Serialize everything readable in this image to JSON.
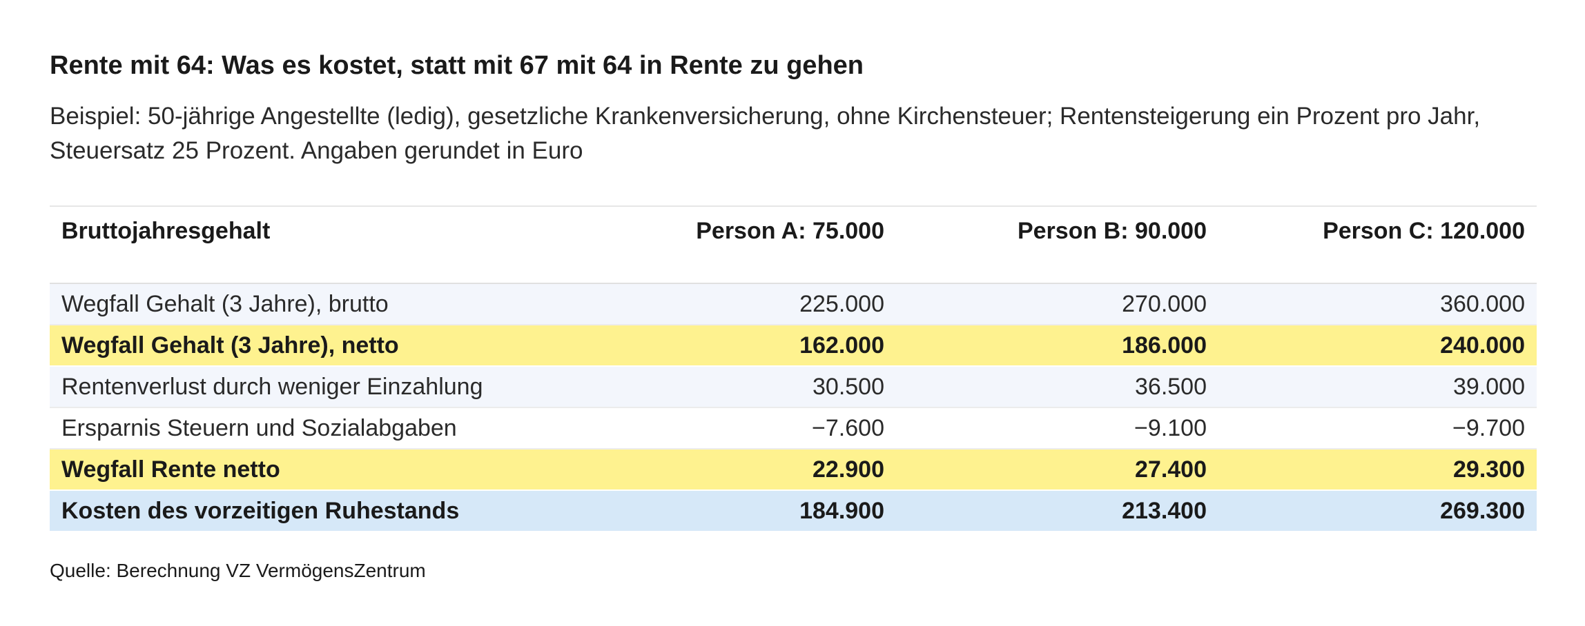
{
  "title": "Rente mit 64: Was es kostet, statt mit 67 mit 64 in Rente zu gehen",
  "subtitle": "Beispiel: 50-jährige Angestellte (ledig), gesetzliche Krankenversicherung, ohne Kirchensteuer; Rentensteigerung ein Prozent pro Jahr, Steuersatz 25 Prozent. Angaben gerundet in Euro",
  "source": "Quelle: Berechnung VZ VermögensZentrum",
  "colors": {
    "row_plain_alt": "#f3f6fc",
    "row_highlight_yellow": "#fef28f",
    "row_highlight_blue": "#d6e8f8"
  },
  "chart_data": {
    "type": "table",
    "columns": [
      "Bruttojahresgehalt",
      "Person A: 75.000",
      "Person B: 90.000",
      "Person C: 120.000"
    ],
    "rows": [
      {
        "label": "Wegfall Gehalt (3 Jahre), brutto",
        "values": [
          "225.000",
          "270.000",
          "360.000"
        ],
        "style": "plain-a"
      },
      {
        "label": "Wegfall Gehalt (3 Jahre), netto",
        "values": [
          "162.000",
          "186.000",
          "240.000"
        ],
        "style": "yellow"
      },
      {
        "label": "Rentenverlust durch weniger Einzahlung",
        "values": [
          "30.500",
          "36.500",
          "39.000"
        ],
        "style": "plain-a"
      },
      {
        "label": "Ersparnis Steuern und Sozialabgaben",
        "values": [
          "−7.600",
          "−9.100",
          "−9.700"
        ],
        "style": "plain-b"
      },
      {
        "label": "Wegfall Rente netto",
        "values": [
          "22.900",
          "27.400",
          "29.300"
        ],
        "style": "yellow"
      },
      {
        "label": "Kosten des vorzeitigen Ruhestands",
        "values": [
          "184.900",
          "213.400",
          "269.300"
        ],
        "style": "blue"
      }
    ]
  }
}
